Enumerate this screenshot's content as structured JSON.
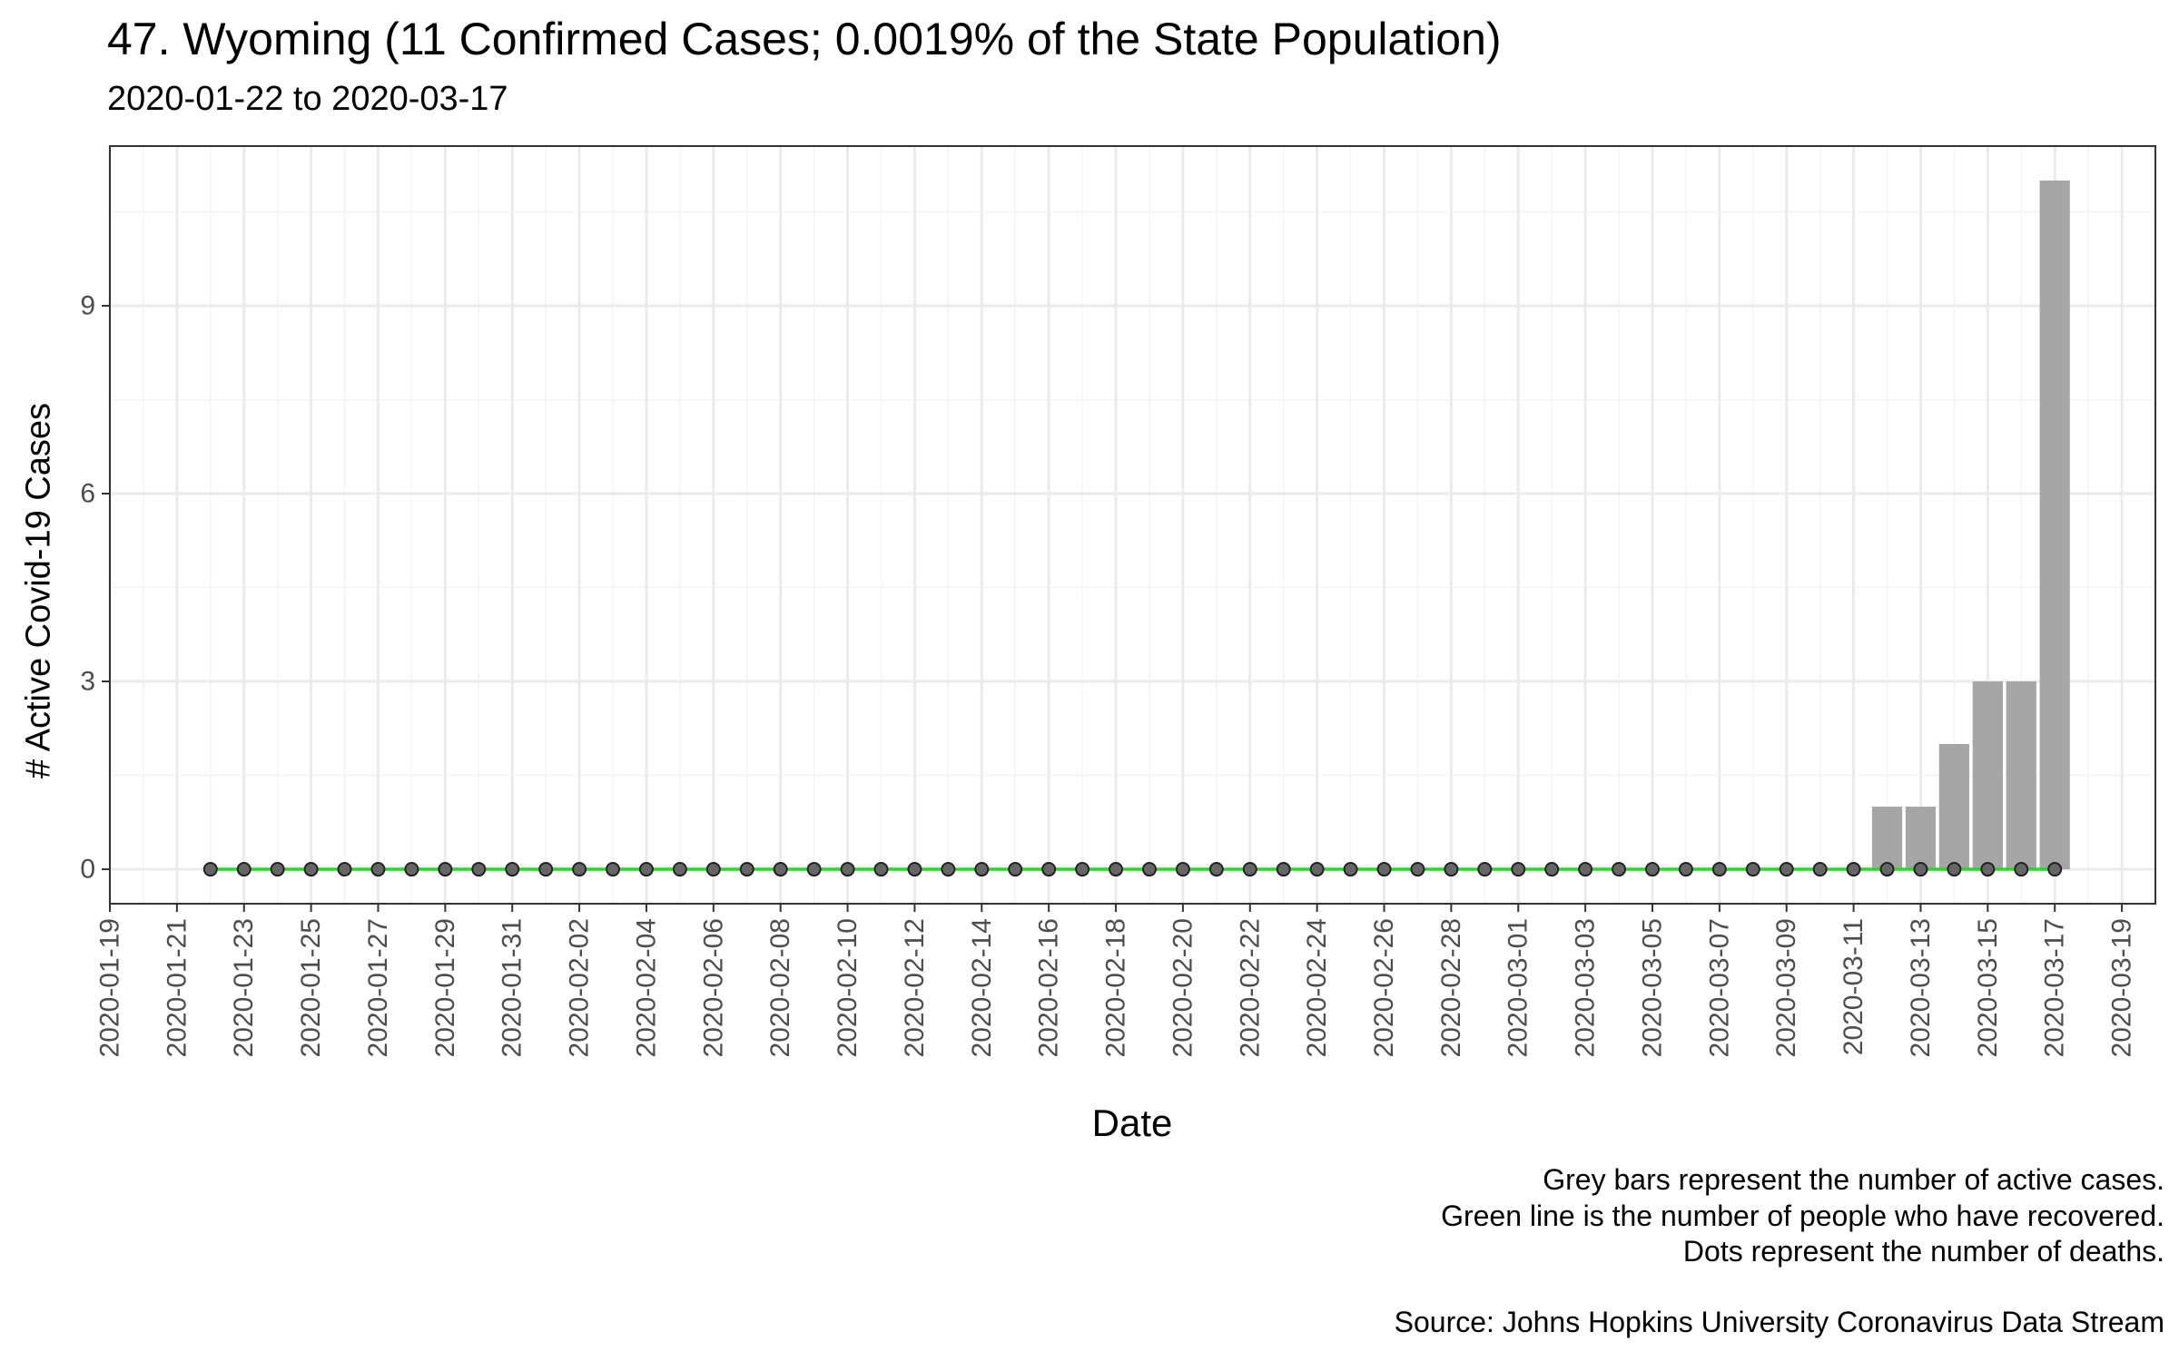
{
  "title": "47. Wyoming (11 Confirmed Cases; 0.0019% of the State Population)",
  "subtitle": "2020-01-22 to 2020-03-17",
  "captions": [
    "Grey bars represent the number of active cases.",
    "Green line is the number of people who have recovered.",
    "Dots represent the number of deaths."
  ],
  "source": "Source: Johns Hopkins University Coronavirus Data Stream",
  "colors": {
    "bar": "#a6a6a6",
    "recovered_line": "#22dd22",
    "death_dot_fill": "#666666",
    "death_dot_stroke": "#222222",
    "grid_major": "#ebebeb",
    "grid_minor": "#f4f4f4",
    "panel_border": "#333333",
    "tick_label": "#4d4d4d"
  },
  "chart_data": {
    "type": "bar",
    "xlabel": "Date",
    "ylabel": "# Active Covid-19 Cases",
    "grid": true,
    "ylim": [
      -0.55,
      11.55
    ],
    "xlim": [
      "2020-01-19",
      "2020-03-20"
    ],
    "y_ticks": [
      0,
      3,
      6,
      9
    ],
    "x_ticks": [
      "2020-01-19",
      "2020-01-21",
      "2020-01-23",
      "2020-01-25",
      "2020-01-27",
      "2020-01-29",
      "2020-01-31",
      "2020-02-02",
      "2020-02-04",
      "2020-02-06",
      "2020-02-08",
      "2020-02-10",
      "2020-02-12",
      "2020-02-14",
      "2020-02-16",
      "2020-02-18",
      "2020-02-20",
      "2020-02-22",
      "2020-02-24",
      "2020-02-26",
      "2020-02-28",
      "2020-03-01",
      "2020-03-03",
      "2020-03-05",
      "2020-03-07",
      "2020-03-09",
      "2020-03-11",
      "2020-03-13",
      "2020-03-15",
      "2020-03-17",
      "2020-03-19"
    ],
    "categories": [
      "2020-01-22",
      "2020-01-23",
      "2020-01-24",
      "2020-01-25",
      "2020-01-26",
      "2020-01-27",
      "2020-01-28",
      "2020-01-29",
      "2020-01-30",
      "2020-01-31",
      "2020-02-01",
      "2020-02-02",
      "2020-02-03",
      "2020-02-04",
      "2020-02-05",
      "2020-02-06",
      "2020-02-07",
      "2020-02-08",
      "2020-02-09",
      "2020-02-10",
      "2020-02-11",
      "2020-02-12",
      "2020-02-13",
      "2020-02-14",
      "2020-02-15",
      "2020-02-16",
      "2020-02-17",
      "2020-02-18",
      "2020-02-19",
      "2020-02-20",
      "2020-02-21",
      "2020-02-22",
      "2020-02-23",
      "2020-02-24",
      "2020-02-25",
      "2020-02-26",
      "2020-02-27",
      "2020-02-28",
      "2020-02-29",
      "2020-03-01",
      "2020-03-02",
      "2020-03-03",
      "2020-03-04",
      "2020-03-05",
      "2020-03-06",
      "2020-03-07",
      "2020-03-08",
      "2020-03-09",
      "2020-03-10",
      "2020-03-11",
      "2020-03-12",
      "2020-03-13",
      "2020-03-14",
      "2020-03-15",
      "2020-03-16",
      "2020-03-17"
    ],
    "series": [
      {
        "name": "Active cases",
        "kind": "bar",
        "values": [
          0,
          0,
          0,
          0,
          0,
          0,
          0,
          0,
          0,
          0,
          0,
          0,
          0,
          0,
          0,
          0,
          0,
          0,
          0,
          0,
          0,
          0,
          0,
          0,
          0,
          0,
          0,
          0,
          0,
          0,
          0,
          0,
          0,
          0,
          0,
          0,
          0,
          0,
          0,
          0,
          0,
          0,
          0,
          0,
          0,
          0,
          0,
          0,
          0,
          0,
          1,
          1,
          2,
          3,
          3,
          11
        ]
      },
      {
        "name": "Recovered",
        "kind": "line",
        "values": [
          0,
          0,
          0,
          0,
          0,
          0,
          0,
          0,
          0,
          0,
          0,
          0,
          0,
          0,
          0,
          0,
          0,
          0,
          0,
          0,
          0,
          0,
          0,
          0,
          0,
          0,
          0,
          0,
          0,
          0,
          0,
          0,
          0,
          0,
          0,
          0,
          0,
          0,
          0,
          0,
          0,
          0,
          0,
          0,
          0,
          0,
          0,
          0,
          0,
          0,
          0,
          0,
          0,
          0,
          0,
          0
        ]
      },
      {
        "name": "Deaths",
        "kind": "points",
        "values": [
          0,
          0,
          0,
          0,
          0,
          0,
          0,
          0,
          0,
          0,
          0,
          0,
          0,
          0,
          0,
          0,
          0,
          0,
          0,
          0,
          0,
          0,
          0,
          0,
          0,
          0,
          0,
          0,
          0,
          0,
          0,
          0,
          0,
          0,
          0,
          0,
          0,
          0,
          0,
          0,
          0,
          0,
          0,
          0,
          0,
          0,
          0,
          0,
          0,
          0,
          0,
          0,
          0,
          0,
          0,
          0
        ]
      }
    ]
  }
}
